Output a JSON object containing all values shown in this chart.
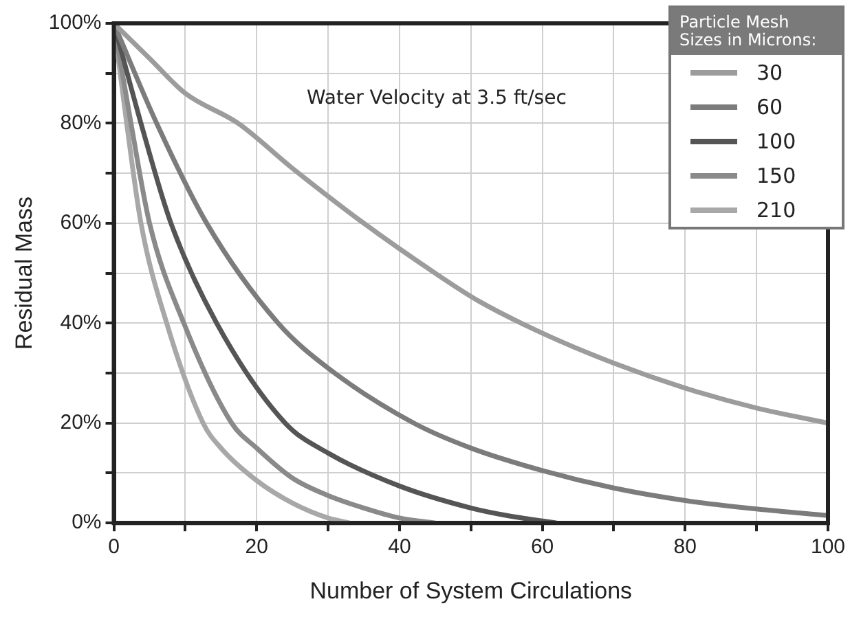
{
  "chart_data": {
    "type": "line",
    "xlabel": "Number of System Circulations",
    "ylabel": "Residual Mass",
    "legend_title": "Particle Mesh Sizes in Microns:",
    "legend": "top right",
    "grid": true,
    "marker": "none",
    "line_style": "solid",
    "annotations": [
      "Water Velocity at 3.5 ft/sec"
    ],
    "xlim": [
      0,
      100
    ],
    "xticks": [
      0,
      {
        "value": 10,
        "label": null
      },
      20,
      {
        "value": 30,
        "label": null
      },
      40,
      {
        "value": 50,
        "label": null
      },
      60,
      {
        "value": 70,
        "label": null
      },
      80,
      {
        "value": 90,
        "label": null
      },
      100
    ],
    "ylim": [
      0,
      100
    ],
    "yticks": [
      {
        "value": 0,
        "label": "0%"
      },
      {
        "value": 10,
        "label": null
      },
      {
        "value": 20,
        "label": "20%"
      },
      {
        "value": 30,
        "label": null
      },
      {
        "value": 40,
        "label": "40%"
      },
      {
        "value": 50,
        "label": null
      },
      {
        "value": 60,
        "label": "60%"
      },
      {
        "value": 70,
        "label": null
      },
      {
        "value": 80,
        "label": "80%"
      },
      {
        "value": 90,
        "label": null
      },
      {
        "value": 100,
        "label": "100%"
      }
    ],
    "series": [
      {
        "name": "30",
        "color": "#9c9c9c",
        "x": [
          0,
          5,
          10,
          17.4,
          25,
          35,
          45,
          51,
          60,
          70,
          80,
          90,
          100
        ],
        "values": [
          100,
          93,
          86,
          80,
          71,
          60,
          50,
          44.5,
          38,
          32,
          27,
          23,
          20
        ]
      },
      {
        "name": "60",
        "color": "#7c7c7c",
        "x": [
          0,
          6,
          13,
          23,
          30,
          42,
          50,
          60,
          70,
          80,
          90,
          100
        ],
        "values": [
          100,
          80,
          60,
          40,
          31,
          20,
          15,
          10.5,
          7,
          4.5,
          2.8,
          1.5
        ]
      },
      {
        "name": "100",
        "color": "#555555",
        "x": [
          0,
          3.8,
          8,
          14.4,
          24,
          30,
          40,
          50,
          55,
          62
        ],
        "values": [
          100,
          80,
          60,
          40,
          20,
          14,
          7.4,
          3,
          1.5,
          0
        ]
      },
      {
        "name": "150",
        "color": "#8a8a8a",
        "x": [
          0,
          2.4,
          5,
          9.8,
          16.5,
          20,
          25,
          30,
          35,
          40,
          45
        ],
        "values": [
          100,
          80,
          60,
          40,
          20,
          15,
          9,
          5.5,
          3,
          1,
          0
        ]
      },
      {
        "name": "210",
        "color": "#a8a8a8",
        "x": [
          0,
          1.8,
          3.8,
          7.4,
          12.5,
          15,
          20,
          25,
          30,
          33
        ],
        "values": [
          100,
          80,
          60,
          40,
          20,
          15,
          8.5,
          4,
          1,
          0
        ]
      }
    ]
  }
}
